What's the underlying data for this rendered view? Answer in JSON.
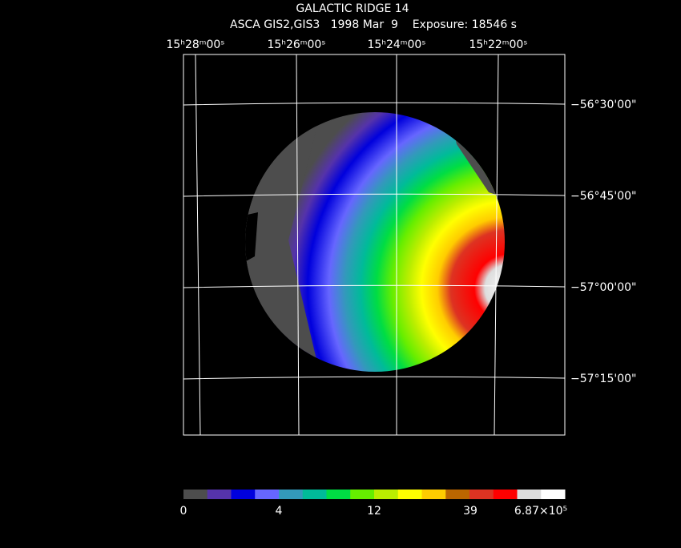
{
  "header": {
    "title": "GALACTIC RIDGE 14",
    "subtitle": "ASCA GIS2,GIS3   1998 Mar  9    Exposure: 18546 s"
  },
  "ra_labels": [
    "15ʰ28ᵐ00ˢ",
    "15ʰ26ᵐ00ˢ",
    "15ʰ24ᵐ00ˢ",
    "15ʰ22ᵐ00ˢ"
  ],
  "dec_labels": [
    "−56°30'00\"",
    "−56°45'00\"",
    "−57°00'00\"",
    "−57°15'00\""
  ],
  "colorbar": {
    "colors": [
      "#4d4d4d",
      "#5533aa",
      "#0000dd",
      "#6666ff",
      "#3399bb",
      "#00bb99",
      "#00dd44",
      "#66ee00",
      "#bbee00",
      "#ffff00",
      "#ffcc00",
      "#bb6600",
      "#dd3322",
      "#ff0000",
      "#dddddd",
      "#ffffff"
    ],
    "labels": [
      "0",
      "4",
      "12",
      "39",
      "6.87×10⁵"
    ]
  }
}
